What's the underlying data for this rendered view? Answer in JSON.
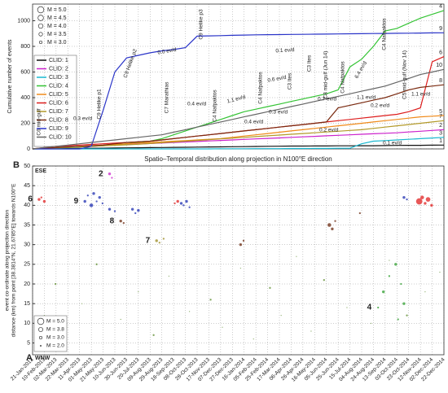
{
  "chart_data": [
    {
      "type": "line",
      "ylabel": "Cumulative number of events",
      "xlabel": "Spatio–Temporal distribution along projection in N100°E direction",
      "ylim": [
        0,
        1130
      ],
      "yticks": [
        0,
        200,
        400,
        600,
        800,
        1000
      ],
      "grid": true,
      "size_legend": [
        {
          "value": 5.0,
          "label": "M = 5.0"
        },
        {
          "value": 4.5,
          "label": "M = 4.5"
        },
        {
          "value": 4.0,
          "label": "M = 4.0"
        },
        {
          "value": 3.5,
          "label": "M = 3.5"
        },
        {
          "value": 3.0,
          "label": "M = 3.0"
        }
      ],
      "series": [
        {
          "name": "CLID: 1",
          "end_label": "1",
          "color": "#111111",
          "values": [
            0,
            1,
            2,
            3,
            4,
            5,
            6,
            7,
            8,
            9,
            10,
            11,
            12,
            13,
            14,
            15,
            16,
            17,
            18,
            19,
            20,
            21,
            22,
            22,
            23,
            23,
            24,
            24,
            25,
            25,
            26,
            27,
            28,
            28,
            29,
            30
          ]
        },
        {
          "name": "CLID: 2",
          "end_label": "2",
          "color": "#cc22cc",
          "values": [
            0,
            4,
            8,
            12,
            16,
            20,
            25,
            30,
            34,
            38,
            42,
            46,
            50,
            54,
            58,
            62,
            66,
            70,
            74,
            78,
            82,
            86,
            90,
            94,
            98,
            102,
            106,
            110,
            114,
            118,
            122,
            126,
            132,
            138,
            144,
            150
          ]
        },
        {
          "name": "CLID: 3",
          "end_label": "3",
          "color": "#19b8d0",
          "values": [
            0,
            0,
            0,
            0,
            0,
            0,
            0,
            0,
            0,
            0,
            0,
            0,
            0,
            0,
            0,
            0,
            1,
            1,
            1,
            2,
            2,
            2,
            3,
            3,
            4,
            4,
            5,
            5,
            40,
            60,
            65,
            70,
            75,
            80,
            85,
            90
          ]
        },
        {
          "name": "CLID: 4",
          "end_label": "4",
          "color": "#35c435",
          "values": [
            0,
            3,
            6,
            10,
            15,
            20,
            25,
            30,
            40,
            50,
            60,
            80,
            110,
            140,
            170,
            200,
            230,
            260,
            290,
            310,
            330,
            350,
            370,
            390,
            410,
            430,
            460,
            640,
            700,
            800,
            920,
            940,
            980,
            1020,
            1050,
            1080
          ]
        },
        {
          "name": "CLID: 5",
          "end_label": "5",
          "color": "#f08a1a",
          "values": [
            0,
            5,
            10,
            15,
            20,
            25,
            30,
            35,
            40,
            45,
            50,
            55,
            60,
            65,
            70,
            75,
            80,
            90,
            100,
            110,
            120,
            130,
            140,
            150,
            160,
            170,
            180,
            190,
            200,
            210,
            220,
            230,
            240,
            250,
            255,
            260
          ]
        },
        {
          "name": "CLID: 6",
          "end_label": "6",
          "color": "#dd1c1c",
          "values": [
            0,
            10,
            20,
            25,
            30,
            35,
            40,
            45,
            50,
            55,
            60,
            70,
            80,
            90,
            100,
            110,
            120,
            130,
            140,
            150,
            160,
            170,
            180,
            190,
            200,
            210,
            220,
            230,
            240,
            250,
            260,
            270,
            290,
            320,
            680,
            720
          ]
        },
        {
          "name": "CLID: 7",
          "end_label": "7",
          "color": "#b39a2a",
          "values": [
            0,
            4,
            8,
            12,
            16,
            20,
            24,
            28,
            32,
            36,
            42,
            48,
            54,
            60,
            66,
            72,
            78,
            84,
            90,
            96,
            102,
            108,
            114,
            120,
            126,
            132,
            138,
            144,
            150,
            160,
            170,
            180,
            190,
            200,
            210,
            220
          ]
        },
        {
          "name": "CLID: 8",
          "end_label": "8",
          "color": "#7a2a10",
          "values": [
            0,
            5,
            10,
            15,
            20,
            25,
            30,
            40,
            50,
            55,
            60,
            70,
            80,
            90,
            100,
            110,
            120,
            130,
            140,
            150,
            160,
            170,
            180,
            190,
            200,
            210,
            320,
            340,
            360,
            380,
            400,
            430,
            460,
            480,
            490,
            500
          ]
        },
        {
          "name": "CLID: 9",
          "end_label": "9",
          "color": "#2a34c8",
          "values": [
            0,
            0,
            0,
            0,
            0,
            20,
            300,
            600,
            710,
            730,
            750,
            765,
            775,
            790,
            880,
            882,
            884,
            886,
            888,
            890,
            891,
            892,
            893,
            894,
            895,
            896,
            897,
            898,
            899,
            900,
            901,
            902,
            903,
            904,
            905,
            906
          ]
        },
        {
          "name": "CLID: 10",
          "end_label": "10",
          "color": "#666666",
          "values": [
            0,
            10,
            20,
            30,
            40,
            50,
            60,
            70,
            80,
            90,
            100,
            110,
            130,
            150,
            170,
            190,
            210,
            230,
            250,
            270,
            290,
            310,
            330,
            350,
            370,
            390,
            410,
            430,
            450,
            470,
            490,
            520,
            550,
            580,
            600,
            620
          ]
        }
      ],
      "annotations": [
        "C6 mid-gulf",
        "0.3 ev/d",
        "C9 Helike p1",
        "C9 Helike p2",
        "0.0 ev/d",
        "C9 Helike p3",
        "C7 Marathias",
        "0.4 ev/d",
        "C4 Nafpaktos",
        "1.1 ev/d",
        "C4 Nafpaktos",
        "0.4 ev/d",
        "C3 Ites",
        "0.6 ev/d",
        "0.1 ev/d",
        "0.7 ev/d",
        "C3 Ites",
        "C8 mid-gulf (Jun 14)",
        "C4 Nafpaktos",
        "0.3 ev/d",
        "0.2 ev/d",
        "C4 Nafpaktos",
        "0.2 ev/d",
        "C5 mid-gulf (Nov 14)",
        "1.1 ev/d",
        "1.1 ev/d",
        "0.1 ev/d",
        "6.4 ev/d"
      ]
    },
    {
      "type": "scatter",
      "panel_labels": [
        "B",
        "A"
      ],
      "direction_labels": [
        "ESE",
        "WNW"
      ],
      "ylabel": [
        "event co-ordinate along projection direction",
        "distance (km) from point [38.3814°N, 21.6785°E] towards N100°E"
      ],
      "ylim": [
        2,
        50
      ],
      "yticks": [
        5,
        10,
        15,
        20,
        25,
        30,
        35,
        40,
        45,
        50
      ],
      "grid": true,
      "categories": [
        "21-Jan-2013",
        "10-Feb-2013",
        "02-Mar-2013",
        "22-Mar-2013",
        "11-Apr-2013",
        "01-May-2013",
        "21-May-2013",
        "10-Jun-2013",
        "30-Jun-2013",
        "20-Jul-2013",
        "09-Aug-2013",
        "29-Aug-2013",
        "18-Sep-2013",
        "08-Oct-2013",
        "28-Oct-2013",
        "17-Nov-2013",
        "07-Dec-2013",
        "27-Dec-2013",
        "16-Jan-2014",
        "05-Feb-2014",
        "25-Feb-2014",
        "17-Mar-2014",
        "06-Apr-2014",
        "26-Apr-2014",
        "16-May-2014",
        "05-Jun-2014",
        "25-Jun-2014",
        "15-Jul-2014",
        "04-Aug-2014",
        "24-Aug-2014",
        "13-Sep-2014",
        "03-Oct-2014",
        "23-Oct-2014",
        "12-Nov-2014",
        "02-Dec-2014",
        "22-Dec-2014"
      ],
      "size_legend": [
        {
          "value": 5.0,
          "label": "M = 5.0"
        },
        {
          "value": 3.8,
          "label": "M = 3.8"
        },
        {
          "value": 3.0,
          "label": "M = 3.0"
        },
        {
          "value": 2.0,
          "label": "M = 2.0"
        }
      ],
      "series": [
        {
          "name": "9",
          "color": "#1f2fb0",
          "x": [
            "20-Apr-2013",
            "25-Apr-2013",
            "01-May-2013",
            "05-May-2013",
            "10-May-2013",
            "15-May-2013",
            "20-May-2013",
            "01-Jun-2013",
            "10-Jun-2013",
            "10-Jul-2013",
            "15-Jul-2013",
            "20-Jul-2013",
            "01-Oct-2013",
            "05-Oct-2013",
            "10-Oct-2013",
            "15-Oct-2013",
            "15-Oct-2014",
            "20-Oct-2014"
          ],
          "values": [
            41,
            42.5,
            40,
            43,
            41,
            42,
            40.5,
            39,
            38.5,
            39,
            38,
            38.7,
            40.5,
            40,
            41,
            39.5,
            42,
            41.5
          ],
          "sizes": [
            3,
            2.5,
            3.5,
            3,
            2.5,
            3,
            2.5,
            3,
            2.5,
            3,
            2.5,
            3,
            3,
            2.5,
            3,
            2.5,
            3,
            2.5
          ]
        },
        {
          "name": "6",
          "color": "#e02020",
          "x": [
            "01-Feb-2013",
            "05-Feb-2013",
            "10-Feb-2013",
            "20-Sep-2013",
            "25-Sep-2013",
            "10-Nov-2014",
            "15-Nov-2014",
            "20-Nov-2014",
            "25-Nov-2014",
            "01-Dec-2014"
          ],
          "values": [
            41.5,
            42,
            41,
            40.5,
            41,
            41,
            42,
            40.5,
            41.5,
            40
          ],
          "sizes": [
            3,
            2.5,
            3,
            2.5,
            3,
            5,
            3.5,
            3,
            4,
            3
          ]
        },
        {
          "name": "8",
          "color": "#6b2a10",
          "x": [
            "20-Jun-2013",
            "25-Jun-2013",
            "10-Jan-2014",
            "15-Jan-2014",
            "10-Jun-2014",
            "15-Jun-2014",
            "20-Jun-2014",
            "01-Aug-2014"
          ],
          "values": [
            36,
            35.5,
            30,
            31,
            35,
            34,
            36,
            38
          ],
          "sizes": [
            3,
            2.5,
            3,
            2.5,
            3.5,
            3,
            2.5,
            2.5
          ]
        },
        {
          "name": "7",
          "color": "#9a8a20",
          "x": [
            "20-Aug-2013",
            "25-Aug-2013",
            "01-Sep-2013"
          ],
          "values": [
            31,
            30.5,
            31.5
          ],
          "sizes": [
            3,
            2.5,
            2.5
          ]
        },
        {
          "name": "4",
          "color": "#2e9e2e",
          "x": [
            "01-Sep-2014",
            "10-Sep-2014",
            "20-Sep-2014",
            "01-Oct-2014",
            "10-Oct-2014",
            "15-Oct-2014",
            "05-Oct-2014"
          ],
          "values": [
            14,
            18,
            22,
            25,
            20,
            15,
            11
          ],
          "sizes": [
            2.5,
            3,
            2.5,
            3,
            2.5,
            3,
            2.5
          ]
        },
        {
          "name": "2",
          "color": "#cc22cc",
          "x": [
            "01-Jun-2013",
            "05-Jun-2013"
          ],
          "values": [
            48,
            47
          ],
          "sizes": [
            3,
            2.5
          ]
        },
        {
          "color": "#5a8a2a",
          "x": [
            "10-Feb-2013",
            "01-Mar-2013",
            "20-Mar-2013",
            "15-Apr-2013",
            "10-May-2013",
            "20-Jun-2013",
            "20-Jul-2013",
            "15-Aug-2013",
            "10-Sep-2013",
            "15-Oct-2013",
            "20-Nov-2013",
            "10-Dec-2013",
            "10-Jan-2014",
            "01-Feb-2014",
            "01-Mar-2014",
            "20-Mar-2014",
            "15-Apr-2014",
            "10-May-2014",
            "01-Jun-2014",
            "10-Jul-2014",
            "20-Aug-2014",
            "20-Sep-2014",
            "20-Oct-2014",
            "20-Nov-2014",
            "15-Dec-2014"
          ],
          "values": [
            12,
            20,
            9,
            15,
            25,
            11,
            18,
            7,
            22,
            13,
            16,
            9,
            24,
            6,
            19,
            12,
            27,
            8,
            21,
            14,
            10,
            26,
            12,
            18,
            23
          ],
          "sizes": [
            2,
            2.5,
            2,
            2,
            2.5,
            2,
            2,
            2.5,
            2,
            2,
            2.5,
            2,
            2,
            2,
            2.5,
            2,
            2,
            2,
            2.5,
            2,
            2,
            2,
            2.5,
            2,
            2
          ]
        }
      ]
    }
  ]
}
